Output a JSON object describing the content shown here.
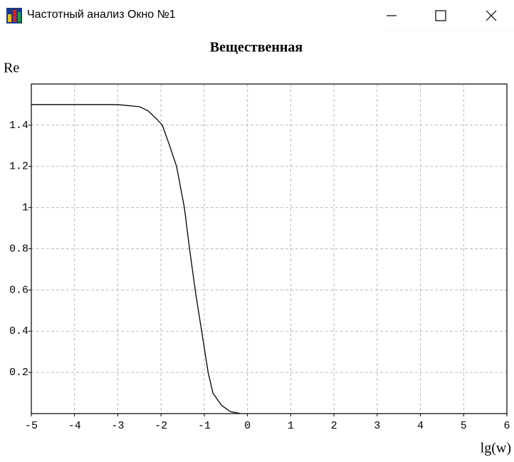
{
  "window": {
    "title": "Частотный анализ Окно №1"
  },
  "chart_data": {
    "type": "line",
    "title": "Вещественная",
    "y_label": "Re",
    "x_label": "lg(w)",
    "x": [
      -5,
      -4,
      -3,
      -2.5,
      -2.3,
      -2.1,
      -1.97,
      -1.8,
      -1.64,
      -1.46,
      -1.34,
      -1.21,
      -1.06,
      -0.91,
      -0.8,
      -0.6,
      -0.4,
      -0.16
    ],
    "values": [
      1.5,
      1.5,
      1.5,
      1.49,
      1.47,
      1.43,
      1.4,
      1.3,
      1.2,
      1.0,
      0.8,
      0.6,
      0.4,
      0.2,
      0.1,
      0.04,
      0.01,
      0.0
    ],
    "color": "#000000",
    "xlim": [
      -5,
      6
    ],
    "xticks": [
      -5,
      -4,
      -3,
      -2,
      -1,
      0,
      1,
      2,
      3,
      4,
      5,
      6
    ],
    "ylim": [
      0,
      1.6
    ],
    "yticks": [
      0.2,
      0.4,
      0.6,
      0.8,
      1,
      1.2,
      1.4
    ],
    "grid": true
  }
}
